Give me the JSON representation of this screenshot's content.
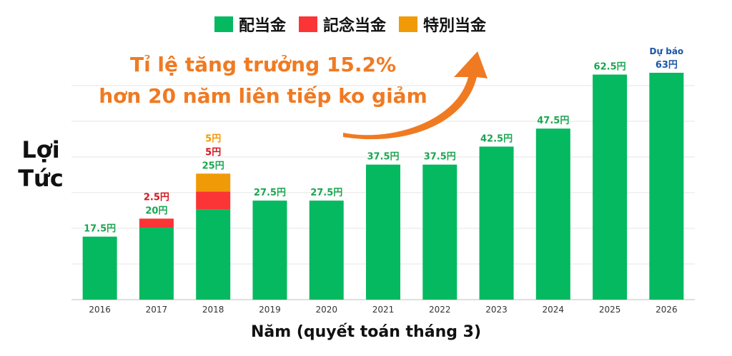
{
  "legend": {
    "items": [
      {
        "label": "配当金",
        "color": "#05b960"
      },
      {
        "label": "記念当金",
        "color": "#fb3535"
      },
      {
        "label": "特別当金",
        "color": "#f19a08"
      }
    ]
  },
  "ylabel_lines": [
    "Lợi",
    "Tức"
  ],
  "xlabel": "Năm (quyết toán tháng 3)",
  "annotation": {
    "line1": "Tỉ lệ tăng trưởng 15.2%",
    "line2": "hơn 20 năm liên tiếp ko giảm",
    "color": "#f07a22"
  },
  "forecast_label": "Dự báo",
  "chart_data": {
    "type": "bar",
    "stacked": true,
    "categories": [
      "2016",
      "2017",
      "2018",
      "2019",
      "2020",
      "2021",
      "2022",
      "2023",
      "2024",
      "2025",
      "2026"
    ],
    "series": [
      {
        "name": "配当金",
        "color": "#05b960",
        "values": [
          17.5,
          20,
          25,
          27.5,
          27.5,
          37.5,
          37.5,
          42.5,
          47.5,
          62.5,
          63
        ]
      },
      {
        "name": "記念当金",
        "color": "#fb3535",
        "values": [
          0,
          2.5,
          5,
          0,
          0,
          0,
          0,
          0,
          0,
          0,
          0
        ]
      },
      {
        "name": "特別当金",
        "color": "#f19a08",
        "values": [
          0,
          0,
          5,
          0,
          0,
          0,
          0,
          0,
          0,
          0,
          0
        ]
      }
    ],
    "data_labels": {
      "配当金": [
        "17.5円",
        "20円",
        "25円",
        "27.5円",
        "27.5円",
        "37.5円",
        "37.5円",
        "42.5円",
        "47.5円",
        "62.5円",
        "63円"
      ],
      "記念当金": [
        "",
        "2.5円",
        "5円",
        "",
        "",
        "",
        "",
        "",
        "",
        "",
        ""
      ],
      "特別当金": [
        "",
        "",
        "5円",
        "",
        "",
        "",
        "",
        "",
        "",
        "",
        ""
      ]
    },
    "forecast_index": 10,
    "forecast_color": "#1a55a8",
    "ylim": [
      0,
      63
    ],
    "grid": true
  }
}
